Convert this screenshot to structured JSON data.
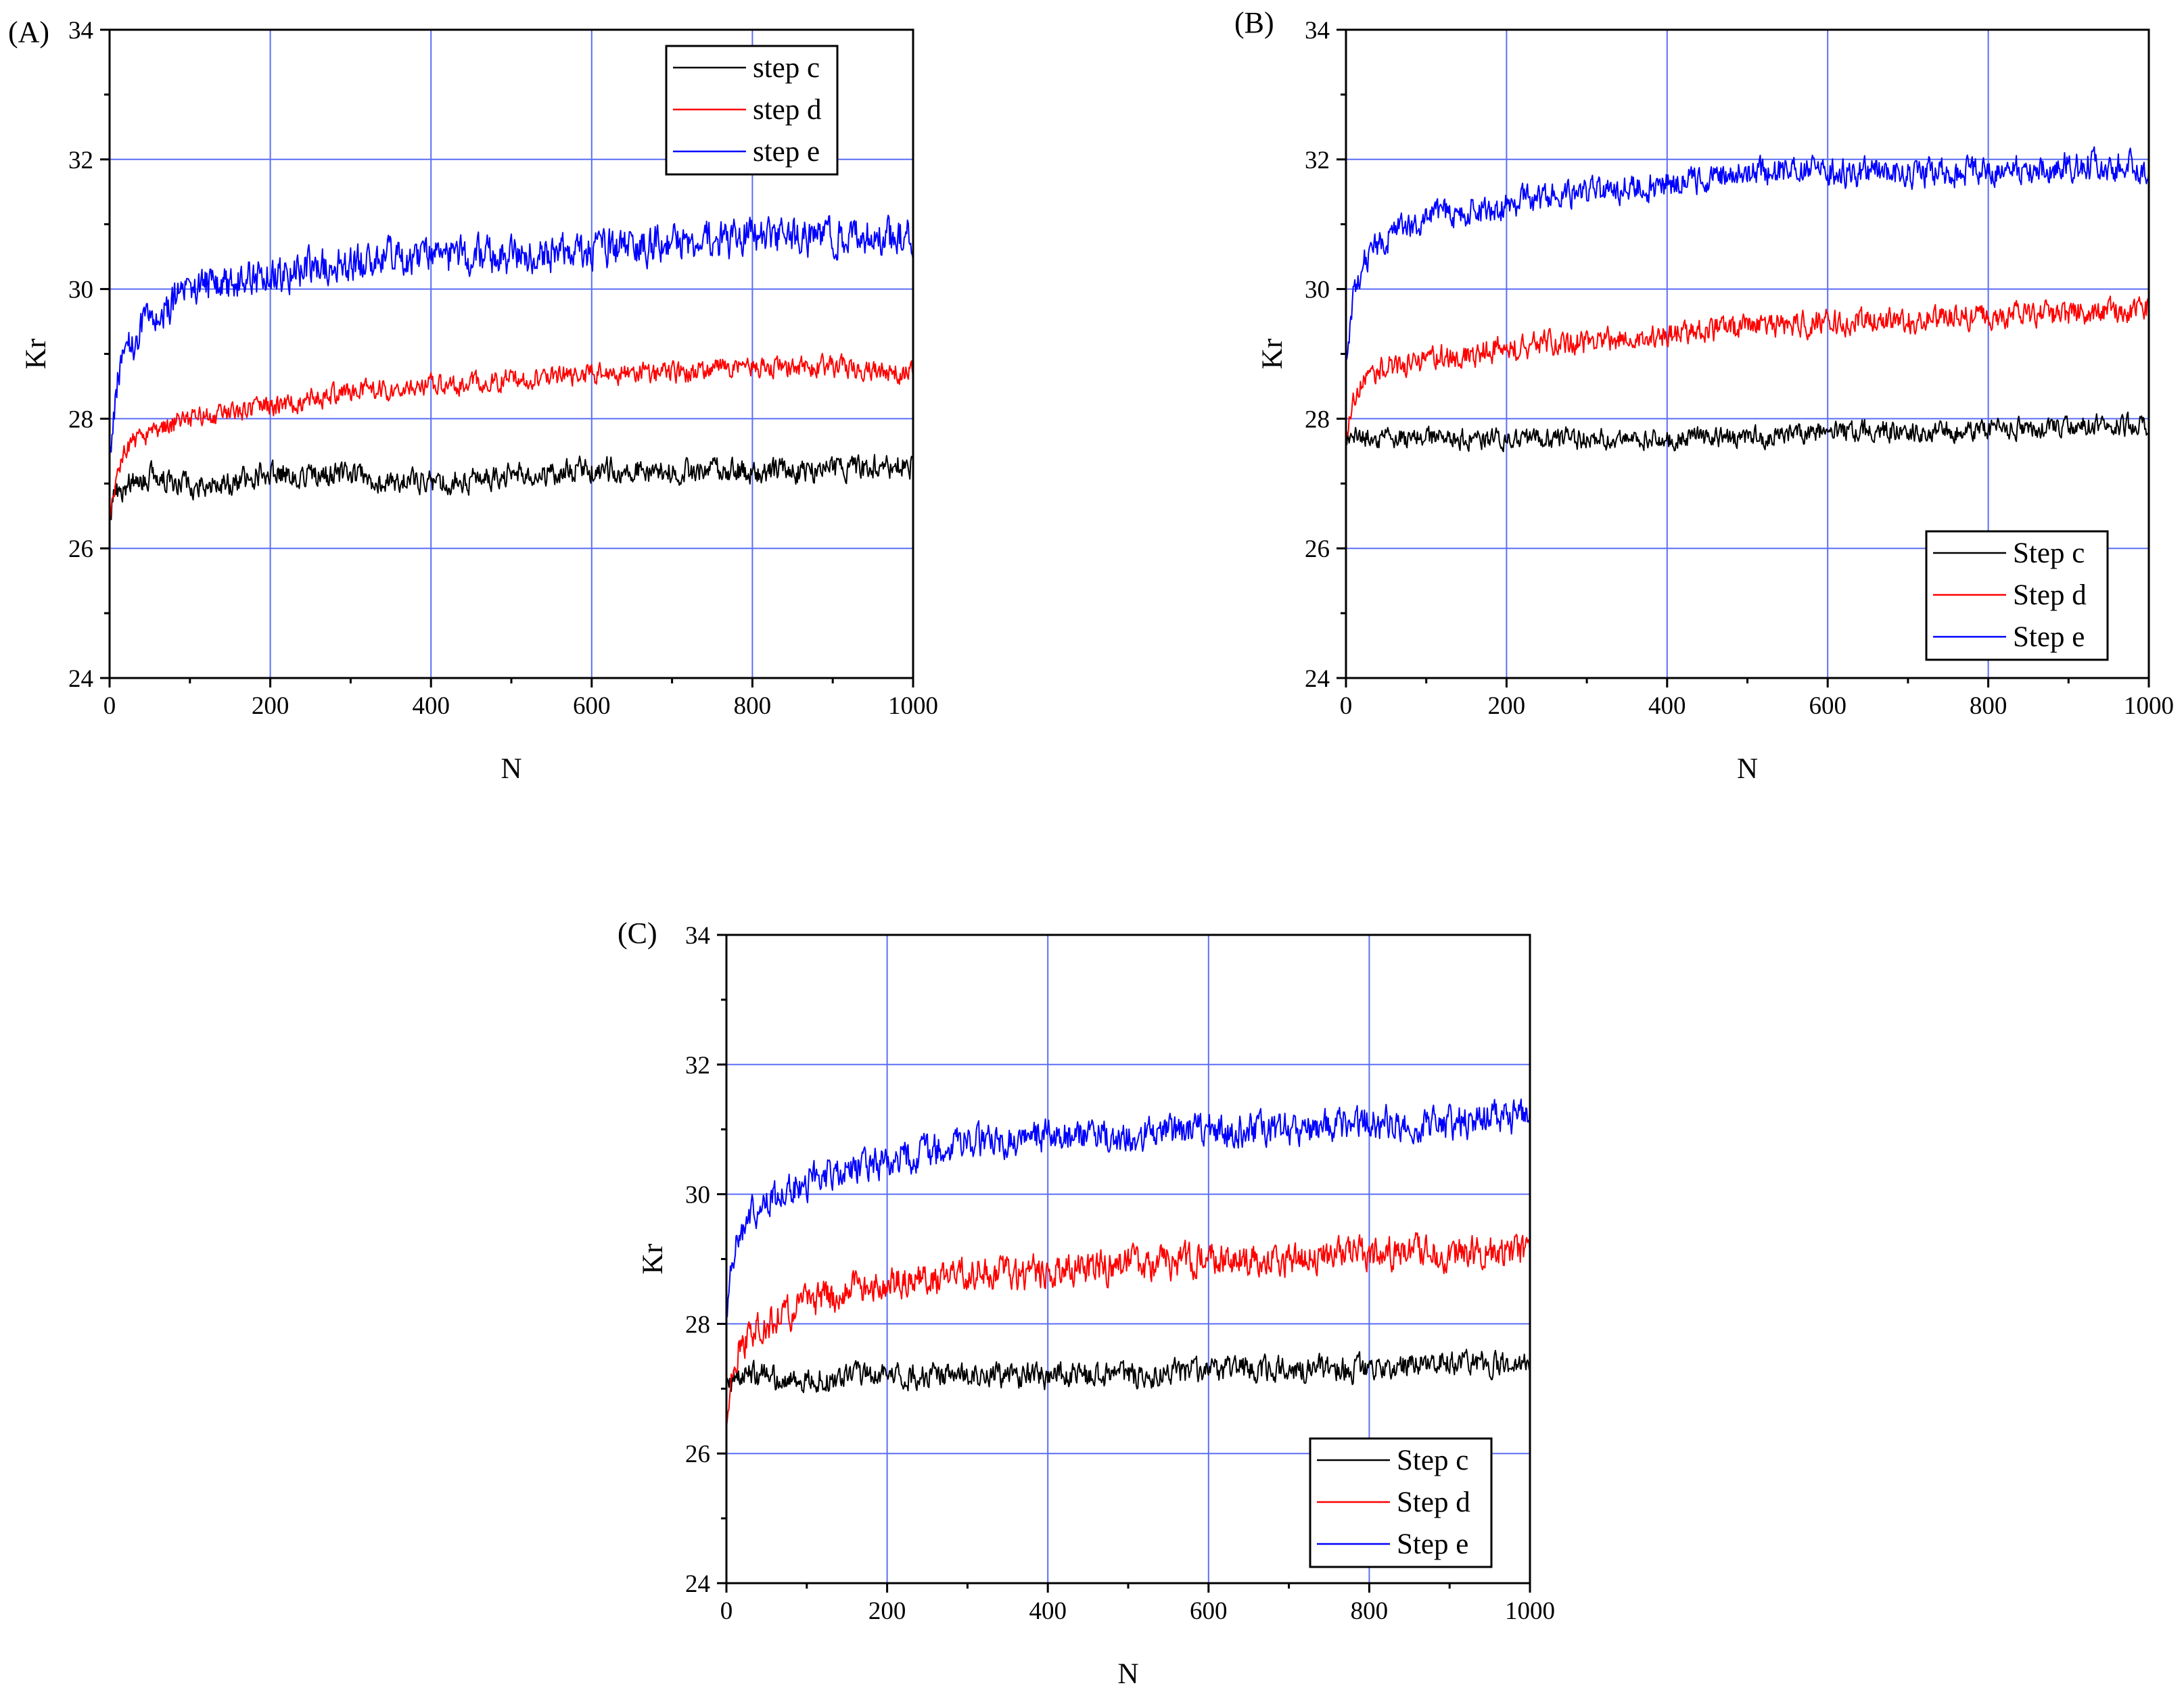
{
  "chart_data": [
    {
      "panel_label": "(A)",
      "type": "line",
      "xlabel": "N",
      "ylabel": "Kr",
      "xlim": [
        0,
        1000
      ],
      "ylim": [
        24,
        34
      ],
      "xticks": [
        "0",
        "200",
        "400",
        "600",
        "800",
        "1000"
      ],
      "yticks": [
        "24",
        "26",
        "28",
        "30",
        "32",
        "34"
      ],
      "grid": true,
      "legend_position": "top-right",
      "series": [
        {
          "name": "step c",
          "color": "#000000",
          "x": [
            0,
            10,
            25,
            50,
            100,
            150,
            200,
            300,
            400,
            500,
            600,
            700,
            800,
            900,
            1000
          ],
          "y": [
            26.6,
            26.9,
            27.0,
            27.1,
            27.0,
            27.0,
            27.2,
            27.1,
            27.0,
            27.1,
            27.2,
            27.2,
            27.2,
            27.2,
            27.3
          ],
          "noise_amplitude": 0.3
        },
        {
          "name": "step d",
          "color": "#ff0000",
          "x": [
            0,
            10,
            25,
            50,
            100,
            150,
            200,
            300,
            400,
            500,
            600,
            700,
            800,
            900,
            1000
          ],
          "y": [
            26.3,
            27.2,
            27.6,
            27.8,
            28.0,
            28.1,
            28.2,
            28.4,
            28.5,
            28.6,
            28.7,
            28.7,
            28.8,
            28.8,
            28.7
          ],
          "noise_amplitude": 0.25
        },
        {
          "name": "step e",
          "color": "#0000ff",
          "x": [
            0,
            10,
            25,
            50,
            100,
            150,
            200,
            300,
            400,
            500,
            600,
            700,
            800,
            900,
            1000
          ],
          "y": [
            27.5,
            28.6,
            29.1,
            29.5,
            30.0,
            30.1,
            30.2,
            30.4,
            30.5,
            30.5,
            30.6,
            30.7,
            30.8,
            30.8,
            30.8
          ],
          "noise_amplitude": 0.45
        }
      ]
    },
    {
      "panel_label": "(B)",
      "type": "line",
      "xlabel": "N",
      "ylabel": "Kr",
      "xlim": [
        0,
        1000
      ],
      "ylim": [
        24,
        34
      ],
      "xticks": [
        "0",
        "200",
        "400",
        "600",
        "800",
        "1000"
      ],
      "yticks": [
        "24",
        "26",
        "28",
        "30",
        "32",
        "34"
      ],
      "grid": true,
      "legend_position": "bottom-right",
      "series": [
        {
          "name": "Step c",
          "color": "#000000",
          "x": [
            0,
            10,
            25,
            50,
            100,
            150,
            200,
            300,
            400,
            500,
            600,
            700,
            800,
            900,
            1000
          ],
          "y": [
            27.7,
            27.7,
            27.7,
            27.7,
            27.7,
            27.7,
            27.7,
            27.7,
            27.7,
            27.7,
            27.8,
            27.8,
            27.8,
            27.9,
            27.9
          ],
          "noise_amplitude": 0.25
        },
        {
          "name": "Step d",
          "color": "#ff0000",
          "x": [
            0,
            10,
            25,
            50,
            100,
            150,
            200,
            300,
            400,
            500,
            600,
            700,
            800,
            900,
            1000
          ],
          "y": [
            27.6,
            28.3,
            28.6,
            28.8,
            28.9,
            29.0,
            29.1,
            29.2,
            29.3,
            29.4,
            29.5,
            29.5,
            29.6,
            29.6,
            29.7
          ],
          "noise_amplitude": 0.3
        },
        {
          "name": "Step e",
          "color": "#0000ff",
          "x": [
            0,
            10,
            25,
            50,
            100,
            150,
            200,
            300,
            400,
            500,
            600,
            700,
            800,
            900,
            1000
          ],
          "y": [
            29.0,
            30.0,
            30.5,
            30.8,
            31.1,
            31.2,
            31.3,
            31.5,
            31.6,
            31.8,
            31.8,
            31.8,
            31.8,
            31.9,
            31.9
          ],
          "noise_amplitude": 0.35
        }
      ]
    },
    {
      "panel_label": "(C)",
      "type": "line",
      "xlabel": "N",
      "ylabel": "Kr",
      "xlim": [
        0,
        1000
      ],
      "ylim": [
        24,
        34
      ],
      "xticks": [
        "0",
        "200",
        "400",
        "600",
        "800",
        "1000"
      ],
      "yticks": [
        "24",
        "26",
        "28",
        "30",
        "32",
        "34"
      ],
      "grid": true,
      "legend_position": "bottom-right",
      "series": [
        {
          "name": "Step c",
          "color": "#000000",
          "x": [
            0,
            10,
            25,
            50,
            100,
            150,
            200,
            300,
            400,
            500,
            600,
            700,
            800,
            900,
            1000
          ],
          "y": [
            27.0,
            27.2,
            27.2,
            27.2,
            27.1,
            27.2,
            27.2,
            27.2,
            27.2,
            27.2,
            27.3,
            27.3,
            27.3,
            27.4,
            27.4
          ],
          "noise_amplitude": 0.3
        },
        {
          "name": "Step d",
          "color": "#ff0000",
          "x": [
            0,
            10,
            25,
            50,
            100,
            150,
            200,
            300,
            400,
            500,
            600,
            700,
            800,
            900,
            1000
          ],
          "y": [
            26.4,
            27.5,
            27.8,
            28.0,
            28.3,
            28.5,
            28.6,
            28.8,
            28.8,
            28.9,
            29.0,
            29.0,
            29.1,
            29.1,
            29.1
          ],
          "noise_amplitude": 0.4
        },
        {
          "name": "Step e",
          "color": "#0000ff",
          "x": [
            0,
            10,
            25,
            50,
            100,
            150,
            200,
            300,
            400,
            500,
            600,
            700,
            800,
            900,
            1000
          ],
          "y": [
            28.0,
            29.2,
            29.6,
            29.9,
            30.2,
            30.4,
            30.5,
            30.8,
            30.9,
            30.9,
            31.0,
            31.0,
            31.1,
            31.1,
            31.2
          ],
          "noise_amplitude": 0.4
        }
      ]
    }
  ]
}
